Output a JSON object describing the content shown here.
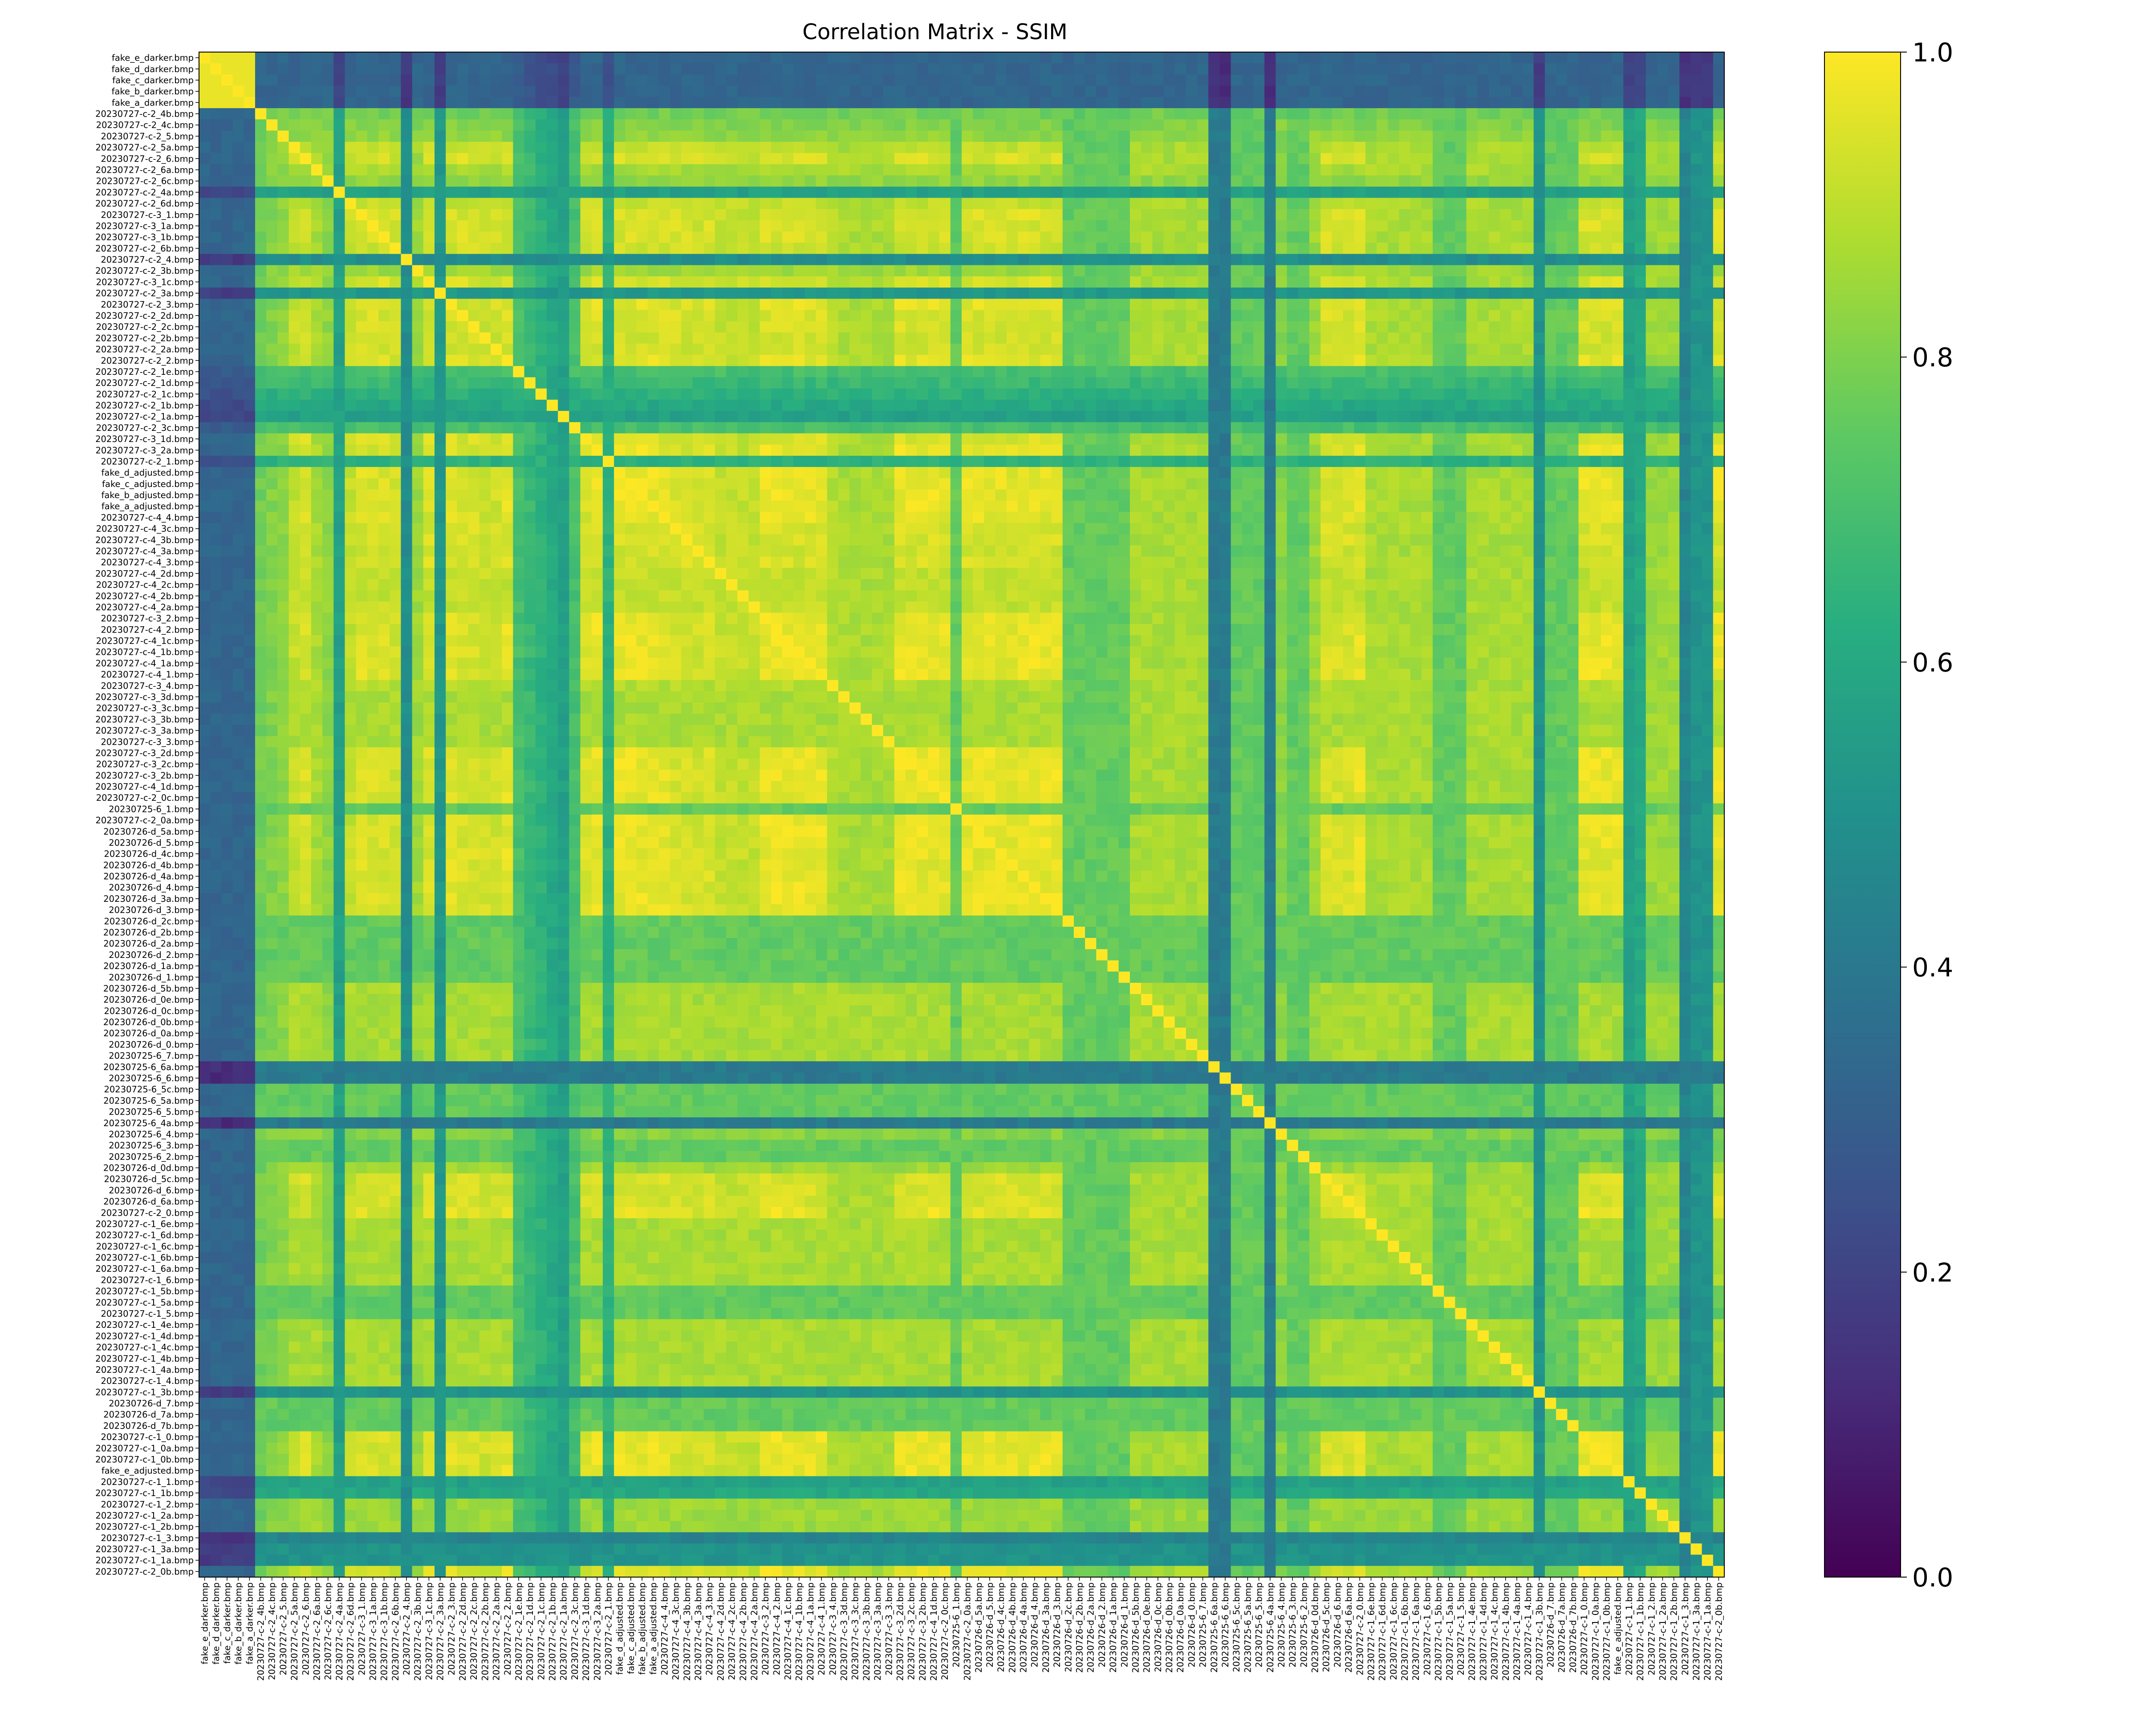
{
  "chart_data": {
    "type": "heatmap",
    "title": "Correlation Matrix - SSIM",
    "xlabel": "",
    "ylabel": "",
    "colormap": "viridis",
    "vmin": 0.0,
    "vmax": 1.0,
    "colorbar_ticks": [
      "0.0",
      "0.2",
      "0.4",
      "0.6",
      "0.8",
      "1.0"
    ],
    "labels": [
      "fake_e_darker.bmp",
      "fake_d_darker.bmp",
      "fake_c_darker.bmp",
      "fake_b_darker.bmp",
      "fake_a_darker.bmp",
      "20230727-c-2_4b.bmp",
      "20230727-c-2_4c.bmp",
      "20230727-c-2_5.bmp",
      "20230727-c-2_5a.bmp",
      "20230727-c-2_6.bmp",
      "20230727-c-2_6a.bmp",
      "20230727-c-2_6c.bmp",
      "20230727-c-2_4a.bmp",
      "20230727-c-2_6d.bmp",
      "20230727-c-3_1.bmp",
      "20230727-c-3_1a.bmp",
      "20230727-c-3_1b.bmp",
      "20230727-c-2_6b.bmp",
      "20230727-c-2_4.bmp",
      "20230727-c-2_3b.bmp",
      "20230727-c-3_1c.bmp",
      "20230727-c-2_3a.bmp",
      "20230727-c-2_3.bmp",
      "20230727-c-2_2d.bmp",
      "20230727-c-2_2c.bmp",
      "20230727-c-2_2b.bmp",
      "20230727-c-2_2a.bmp",
      "20230727-c-2_2.bmp",
      "20230727-c-2_1e.bmp",
      "20230727-c-2_1d.bmp",
      "20230727-c-2_1c.bmp",
      "20230727-c-2_1b.bmp",
      "20230727-c-2_1a.bmp",
      "20230727-c-2_3c.bmp",
      "20230727-c-3_1d.bmp",
      "20230727-c-3_2a.bmp",
      "20230727-c-2_1.bmp",
      "fake_d_adjusted.bmp",
      "fake_c_adjusted.bmp",
      "fake_b_adjusted.bmp",
      "fake_a_adjusted.bmp",
      "20230727-c-4_4.bmp",
      "20230727-c-4_3c.bmp",
      "20230727-c-4_3b.bmp",
      "20230727-c-4_3a.bmp",
      "20230727-c-4_3.bmp",
      "20230727-c-4_2d.bmp",
      "20230727-c-4_2c.bmp",
      "20230727-c-4_2b.bmp",
      "20230727-c-4_2a.bmp",
      "20230727-c-3_2.bmp",
      "20230727-c-4_2.bmp",
      "20230727-c-4_1c.bmp",
      "20230727-c-4_1b.bmp",
      "20230727-c-4_1a.bmp",
      "20230727-c-4_1.bmp",
      "20230727-c-3_4.bmp",
      "20230727-c-3_3d.bmp",
      "20230727-c-3_3c.bmp",
      "20230727-c-3_3b.bmp",
      "20230727-c-3_3a.bmp",
      "20230727-c-3_3.bmp",
      "20230727-c-3_2d.bmp",
      "20230727-c-3_2c.bmp",
      "20230727-c-3_2b.bmp",
      "20230727-c-4_1d.bmp",
      "20230727-c-2_0c.bmp",
      "20230725-6_1.bmp",
      "20230727-c-2_0a.bmp",
      "20230726-d_5a.bmp",
      "20230726-d_5.bmp",
      "20230726-d_4c.bmp",
      "20230726-d_4b.bmp",
      "20230726-d_4a.bmp",
      "20230726-d_4.bmp",
      "20230726-d_3a.bmp",
      "20230726-d_3.bmp",
      "20230726-d_2c.bmp",
      "20230726-d_2b.bmp",
      "20230726-d_2a.bmp",
      "20230726-d_2.bmp",
      "20230726-d_1a.bmp",
      "20230726-d_1.bmp",
      "20230726-d_5b.bmp",
      "20230726-d_0e.bmp",
      "20230726-d_0c.bmp",
      "20230726-d_0b.bmp",
      "20230726-d_0a.bmp",
      "20230726-d_0.bmp",
      "20230725-6_7.bmp",
      "20230725-6_6a.bmp",
      "20230725-6_6.bmp",
      "20230725-6_5c.bmp",
      "20230725-6_5a.bmp",
      "20230725-6_5.bmp",
      "20230725-6_4a.bmp",
      "20230725-6_4.bmp",
      "20230725-6_3.bmp",
      "20230725-6_2.bmp",
      "20230726-d_0d.bmp",
      "20230726-d_5c.bmp",
      "20230726-d_6.bmp",
      "20230726-d_6a.bmp",
      "20230727-c-2_0.bmp",
      "20230727-c-1_6e.bmp",
      "20230727-c-1_6d.bmp",
      "20230727-c-1_6c.bmp",
      "20230727-c-1_6b.bmp",
      "20230727-c-1_6a.bmp",
      "20230727-c-1_6.bmp",
      "20230727-c-1_5b.bmp",
      "20230727-c-1_5a.bmp",
      "20230727-c-1_5.bmp",
      "20230727-c-1_4e.bmp",
      "20230727-c-1_4d.bmp",
      "20230727-c-1_4c.bmp",
      "20230727-c-1_4b.bmp",
      "20230727-c-1_4a.bmp",
      "20230727-c-1_4.bmp",
      "20230727-c-1_3b.bmp",
      "20230726-d_7.bmp",
      "20230726-d_7a.bmp",
      "20230726-d_7b.bmp",
      "20230727-c-1_0.bmp",
      "20230727-c-1_0a.bmp",
      "20230727-c-1_0b.bmp",
      "fake_e_adjusted.bmp",
      "20230727-c-1_1.bmp",
      "20230727-c-1_1b.bmp",
      "20230727-c-1_2.bmp",
      "20230727-c-1_2a.bmp",
      "20230727-c-1_2b.bmp",
      "20230727-c-1_3.bmp",
      "20230727-c-1_3a.bmp",
      "20230727-c-1_1a.bmp",
      "20230727-c-2_0b.bmp"
    ],
    "row_profile": [
      0.3,
      0.3,
      0.3,
      0.3,
      0.3,
      0.32,
      0.34,
      0.36,
      0.45,
      0.5,
      0.4,
      0.36,
      0.18,
      0.45,
      0.52,
      0.5,
      0.5,
      0.48,
      0.14,
      0.38,
      0.5,
      0.16,
      0.55,
      0.5,
      0.5,
      0.48,
      0.48,
      0.55,
      0.26,
      0.24,
      0.22,
      0.2,
      0.18,
      0.26,
      0.5,
      0.72,
      0.22,
      0.6,
      0.6,
      0.6,
      0.6,
      0.55,
      0.5,
      0.5,
      0.48,
      0.5,
      0.45,
      0.45,
      0.45,
      0.45,
      0.68,
      0.62,
      0.6,
      0.62,
      0.62,
      0.6,
      0.42,
      0.4,
      0.4,
      0.4,
      0.4,
      0.4,
      0.62,
      0.62,
      0.62,
      0.6,
      0.55,
      0.3,
      0.58,
      0.6,
      0.6,
      0.55,
      0.55,
      0.55,
      0.62,
      0.65,
      0.7,
      0.3,
      0.3,
      0.3,
      0.3,
      0.3,
      0.3,
      0.4,
      0.4,
      0.4,
      0.4,
      0.4,
      0.4,
      0.4,
      0.1,
      0.1,
      0.3,
      0.3,
      0.3,
      0.1,
      0.35,
      0.3,
      0.3,
      0.38,
      0.5,
      0.5,
      0.5,
      0.68,
      0.4,
      0.4,
      0.4,
      0.4,
      0.4,
      0.4,
      0.3,
      0.3,
      0.3,
      0.4,
      0.4,
      0.4,
      0.4,
      0.4,
      0.4,
      0.15,
      0.3,
      0.3,
      0.3,
      0.62,
      0.62,
      0.6,
      0.6,
      0.18,
      0.2,
      0.38,
      0.38,
      0.38,
      0.12,
      0.15,
      0.15,
      0.62
    ]
  }
}
